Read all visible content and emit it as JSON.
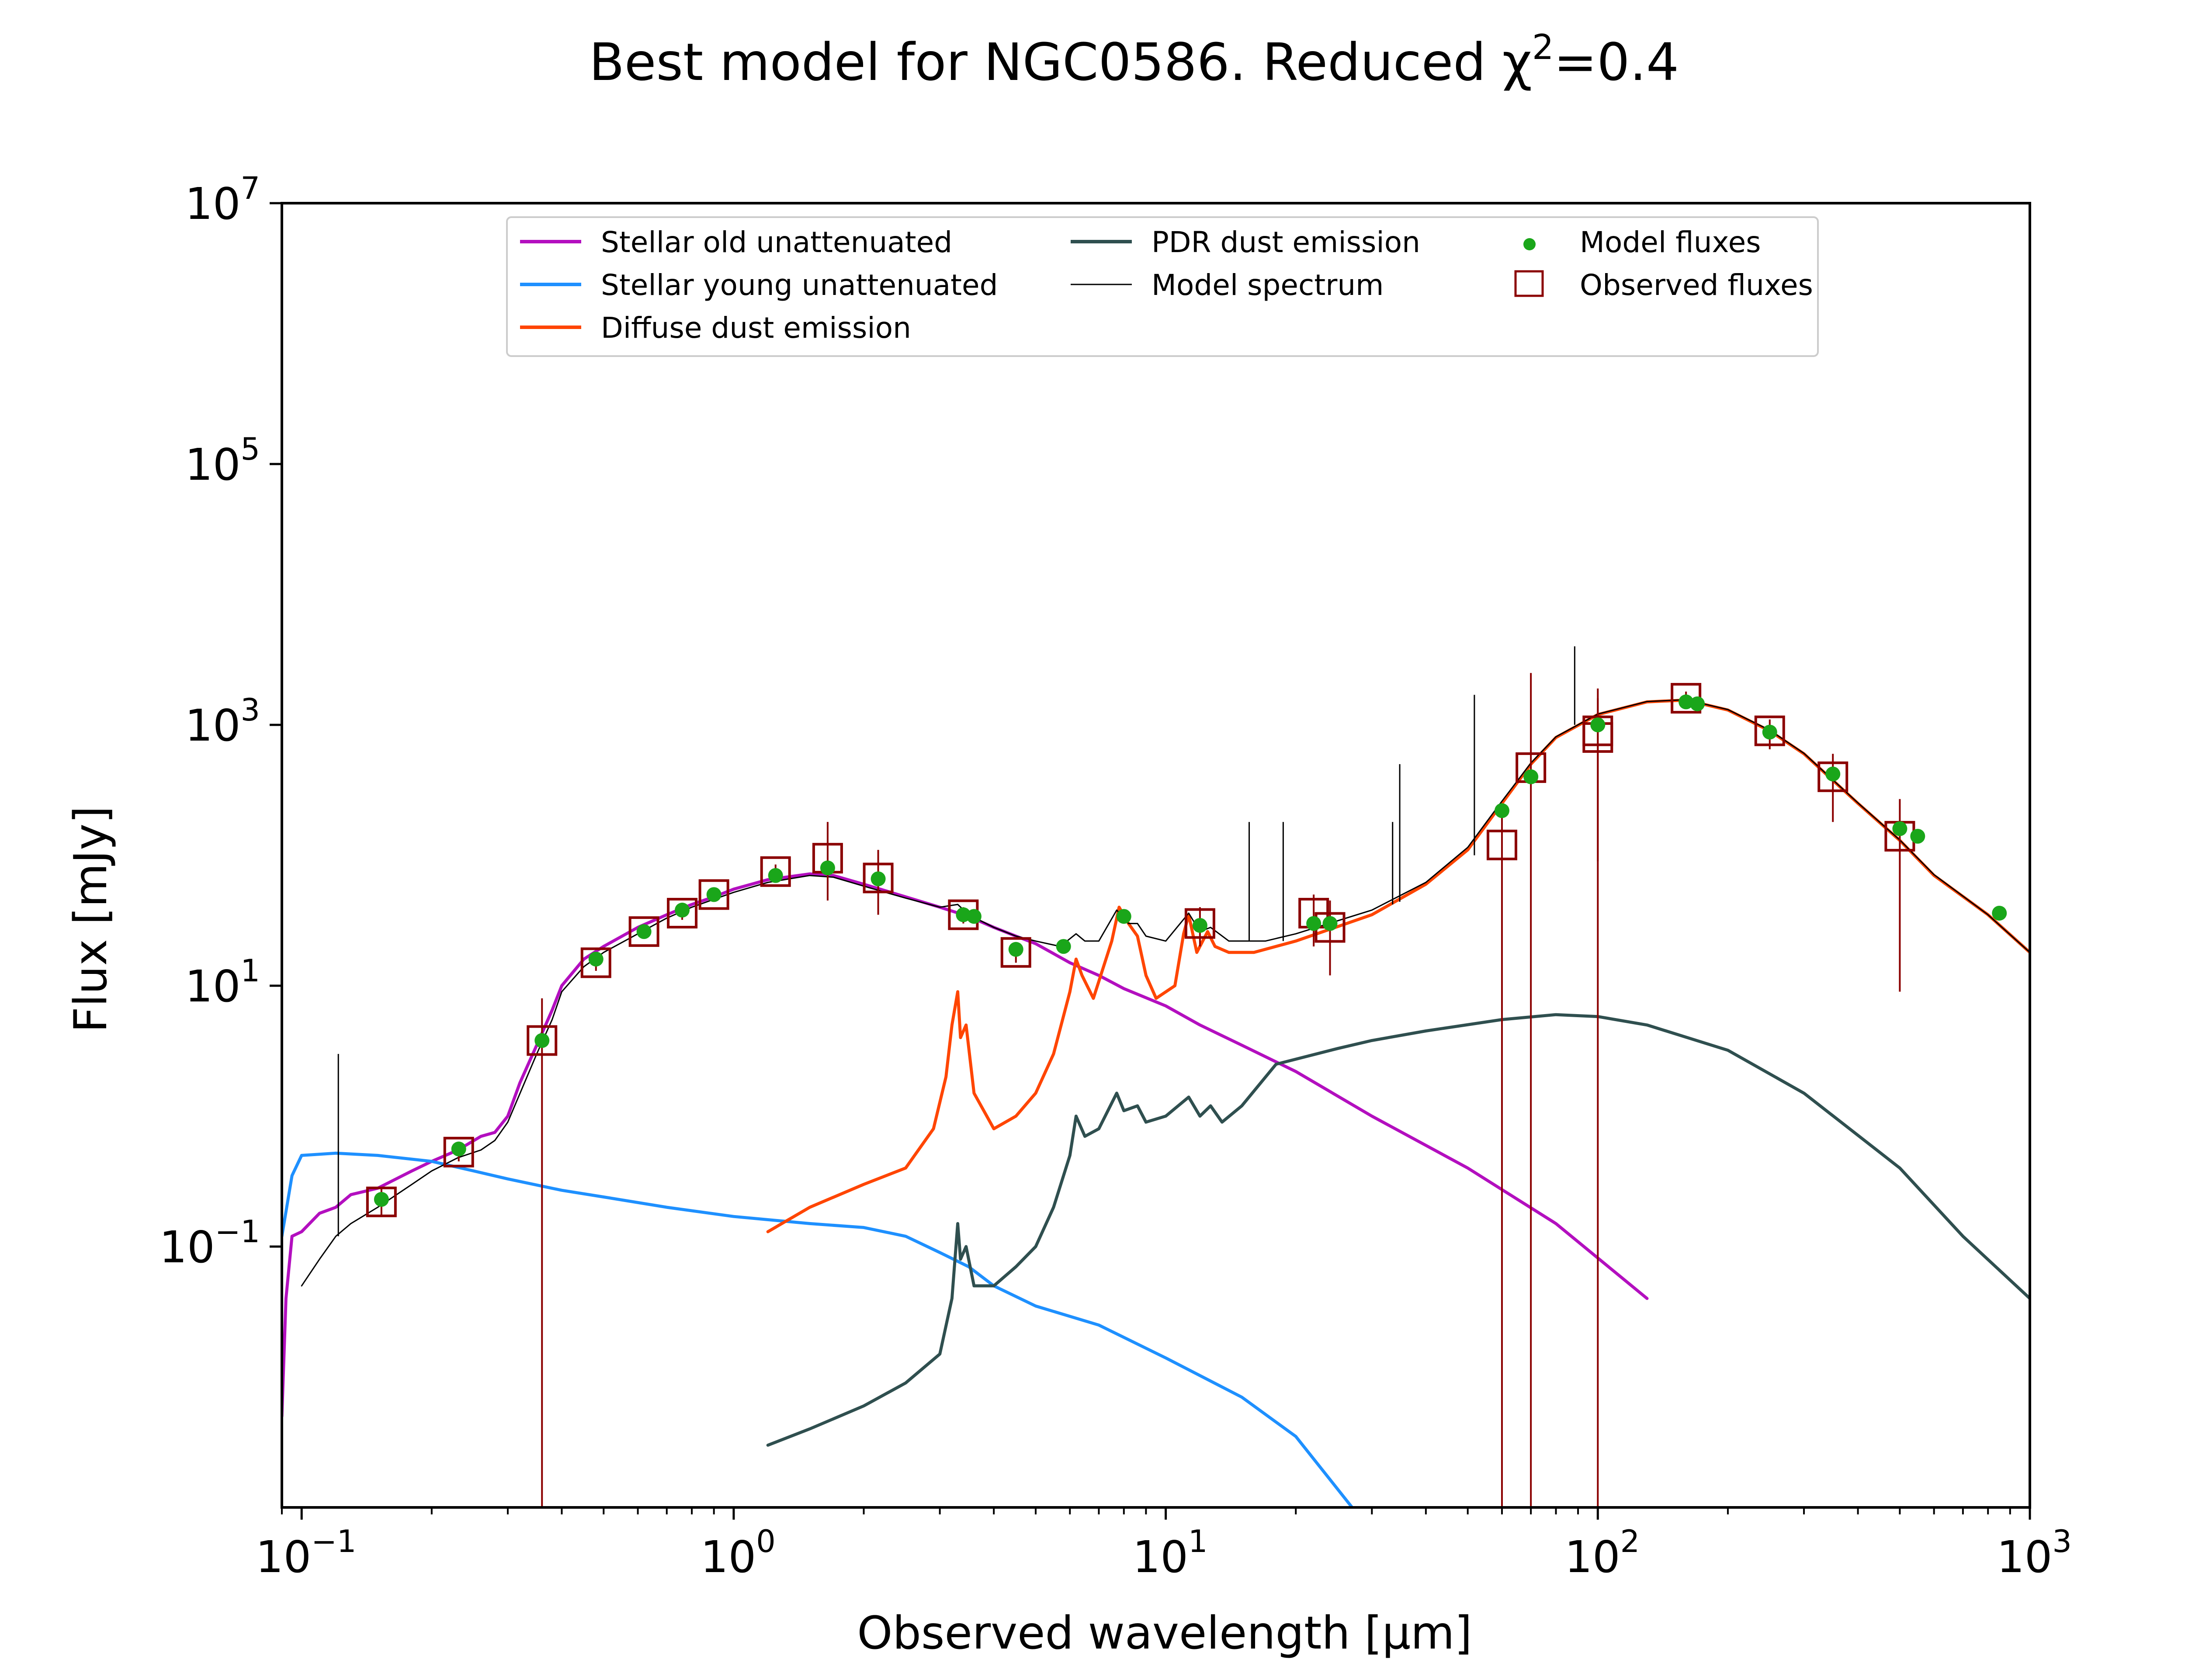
{
  "chart_data": {
    "type": "line",
    "title": "Best model for NGC0586. Reduced χ²=0.4",
    "title_parts": {
      "main": "Best model for NGC0586. Reduced χ",
      "sup": "2",
      "tail": "=0.4"
    },
    "xlabel": "Observed wavelength [μm]",
    "ylabel": "Flux [mJy]",
    "xscale": "log",
    "yscale": "log",
    "xlim": [
      0.09,
      1000
    ],
    "ylim": [
      0.001,
      10000000
    ],
    "grid": false,
    "legend_position": "upper center",
    "x_ticks": [
      {
        "value": 0.1,
        "base": "10",
        "exp": "−1"
      },
      {
        "value": 1,
        "base": "10",
        "exp": "0"
      },
      {
        "value": 10,
        "base": "10",
        "exp": "1"
      },
      {
        "value": 100,
        "base": "10",
        "exp": "2"
      },
      {
        "value": 1000,
        "base": "10",
        "exp": "3"
      }
    ],
    "y_ticks": [
      {
        "value": 0.1,
        "base": "10",
        "exp": "−1"
      },
      {
        "value": 10,
        "base": "10",
        "exp": "1"
      },
      {
        "value": 1000,
        "base": "10",
        "exp": "3"
      },
      {
        "value": 100000,
        "base": "10",
        "exp": "5"
      },
      {
        "value": 10000000,
        "base": "10",
        "exp": "7"
      }
    ],
    "legend": [
      {
        "label": "Stellar old unattenuated",
        "color": "#b30fbf",
        "kind": "line"
      },
      {
        "label": "Stellar young unattenuated",
        "color": "#1e90ff",
        "kind": "line"
      },
      {
        "label": "Diffuse dust emission",
        "color": "#ff4500",
        "kind": "line"
      },
      {
        "label": "PDR dust emission",
        "color": "#2f4f4f",
        "kind": "line"
      },
      {
        "label": "Model spectrum",
        "color": "#000000",
        "kind": "thin-line"
      },
      {
        "label": "Model fluxes",
        "color": "#1aa61a",
        "kind": "dot"
      },
      {
        "label": "Observed fluxes",
        "color": "#8b0000",
        "kind": "square"
      }
    ],
    "series": [
      {
        "key": "stellar_old",
        "color": "#b30fbf",
        "width": 7,
        "points": [
          [
            0.09,
            0.005
          ],
          [
            0.092,
            0.04
          ],
          [
            0.095,
            0.12
          ],
          [
            0.1,
            0.13
          ],
          [
            0.11,
            0.18
          ],
          [
            0.12,
            0.2
          ],
          [
            0.13,
            0.25
          ],
          [
            0.15,
            0.28
          ],
          [
            0.18,
            0.38
          ],
          [
            0.2,
            0.45
          ],
          [
            0.23,
            0.55
          ],
          [
            0.26,
            0.7
          ],
          [
            0.28,
            0.75
          ],
          [
            0.3,
            1.0
          ],
          [
            0.32,
            1.8
          ],
          [
            0.35,
            3.5
          ],
          [
            0.38,
            6.5
          ],
          [
            0.4,
            10
          ],
          [
            0.45,
            16
          ],
          [
            0.5,
            20
          ],
          [
            0.6,
            28
          ],
          [
            0.7,
            35
          ],
          [
            0.8,
            42
          ],
          [
            0.9,
            48
          ],
          [
            1.0,
            55
          ],
          [
            1.2,
            65
          ],
          [
            1.5,
            72
          ],
          [
            1.7,
            70
          ],
          [
            2.0,
            60
          ],
          [
            2.5,
            48
          ],
          [
            3.0,
            40
          ],
          [
            3.5,
            34
          ],
          [
            4.0,
            28
          ],
          [
            4.5,
            24
          ],
          [
            5.0,
            21
          ],
          [
            6.0,
            15
          ],
          [
            7.0,
            12
          ],
          [
            8.0,
            9.5
          ],
          [
            10,
            7
          ],
          [
            12,
            5
          ],
          [
            15,
            3.5
          ],
          [
            20,
            2.2
          ],
          [
            30,
            1.0
          ],
          [
            50,
            0.4
          ],
          [
            80,
            0.15
          ],
          [
            130,
            0.04
          ]
        ]
      },
      {
        "key": "stellar_young",
        "color": "#1e90ff",
        "width": 7,
        "points": [
          [
            0.09,
            0.12
          ],
          [
            0.095,
            0.35
          ],
          [
            0.1,
            0.5
          ],
          [
            0.12,
            0.52
          ],
          [
            0.15,
            0.5
          ],
          [
            0.2,
            0.45
          ],
          [
            0.25,
            0.38
          ],
          [
            0.3,
            0.33
          ],
          [
            0.4,
            0.27
          ],
          [
            0.5,
            0.24
          ],
          [
            0.7,
            0.2
          ],
          [
            1.0,
            0.17
          ],
          [
            1.5,
            0.15
          ],
          [
            2.0,
            0.14
          ],
          [
            2.5,
            0.12
          ],
          [
            3.0,
            0.09
          ],
          [
            3.5,
            0.07
          ],
          [
            4.0,
            0.05
          ],
          [
            5.0,
            0.035
          ],
          [
            7.0,
            0.025
          ],
          [
            10,
            0.014
          ],
          [
            15,
            0.007
          ],
          [
            20,
            0.0035
          ],
          [
            27,
            0.001
          ]
        ]
      },
      {
        "key": "diffuse_dust",
        "color": "#ff4500",
        "width": 7,
        "points": [
          [
            1.2,
            0.13
          ],
          [
            1.5,
            0.2
          ],
          [
            2.0,
            0.3
          ],
          [
            2.5,
            0.4
          ],
          [
            2.9,
            0.8
          ],
          [
            3.1,
            2
          ],
          [
            3.2,
            5
          ],
          [
            3.3,
            9
          ],
          [
            3.35,
            4
          ],
          [
            3.45,
            5
          ],
          [
            3.6,
            1.5
          ],
          [
            4.0,
            0.8
          ],
          [
            4.5,
            1.0
          ],
          [
            5.0,
            1.5
          ],
          [
            5.5,
            3
          ],
          [
            6.0,
            9
          ],
          [
            6.2,
            16
          ],
          [
            6.4,
            12
          ],
          [
            6.8,
            8
          ],
          [
            7.5,
            22
          ],
          [
            7.8,
            40
          ],
          [
            8.2,
            30
          ],
          [
            8.6,
            24
          ],
          [
            9.0,
            12
          ],
          [
            9.5,
            8
          ],
          [
            10.5,
            10
          ],
          [
            11.0,
            25
          ],
          [
            11.3,
            35
          ],
          [
            11.8,
            18
          ],
          [
            12.5,
            26
          ],
          [
            13.0,
            20
          ],
          [
            14,
            18
          ],
          [
            16,
            18
          ],
          [
            20,
            22
          ],
          [
            30,
            35
          ],
          [
            40,
            60
          ],
          [
            50,
            110
          ],
          [
            60,
            250
          ],
          [
            70,
            500
          ],
          [
            80,
            800
          ],
          [
            100,
            1200
          ],
          [
            130,
            1500
          ],
          [
            160,
            1550
          ],
          [
            200,
            1300
          ],
          [
            250,
            900
          ],
          [
            300,
            600
          ],
          [
            400,
            250
          ],
          [
            500,
            130
          ],
          [
            600,
            70
          ],
          [
            800,
            35
          ],
          [
            1000,
            18
          ]
        ]
      },
      {
        "key": "pdr_dust",
        "color": "#2f4f4f",
        "width": 7,
        "points": [
          [
            1.2,
            0.003
          ],
          [
            1.5,
            0.004
          ],
          [
            2.0,
            0.006
          ],
          [
            2.5,
            0.009
          ],
          [
            3.0,
            0.015
          ],
          [
            3.2,
            0.04
          ],
          [
            3.3,
            0.15
          ],
          [
            3.35,
            0.08
          ],
          [
            3.45,
            0.1
          ],
          [
            3.6,
            0.05
          ],
          [
            4.0,
            0.05
          ],
          [
            4.5,
            0.07
          ],
          [
            5.0,
            0.1
          ],
          [
            5.5,
            0.2
          ],
          [
            6.0,
            0.5
          ],
          [
            6.2,
            1.0
          ],
          [
            6.5,
            0.7
          ],
          [
            7.0,
            0.8
          ],
          [
            7.7,
            1.5
          ],
          [
            8.0,
            1.1
          ],
          [
            8.6,
            1.2
          ],
          [
            9.0,
            0.9
          ],
          [
            10,
            1.0
          ],
          [
            11.3,
            1.4
          ],
          [
            12,
            1.0
          ],
          [
            12.7,
            1.2
          ],
          [
            13.5,
            0.9
          ],
          [
            15,
            1.2
          ],
          [
            18,
            2.5
          ],
          [
            25,
            3.3
          ],
          [
            30,
            3.8
          ],
          [
            40,
            4.5
          ],
          [
            60,
            5.5
          ],
          [
            80,
            6.0
          ],
          [
            100,
            5.8
          ],
          [
            130,
            5.0
          ],
          [
            200,
            3.2
          ],
          [
            300,
            1.5
          ],
          [
            500,
            0.4
          ],
          [
            700,
            0.12
          ],
          [
            1000,
            0.04
          ]
        ]
      },
      {
        "key": "model_spectrum",
        "color": "#000000",
        "width": 3,
        "points": [
          [
            0.1,
            0.05
          ],
          [
            0.11,
            0.08
          ],
          [
            0.12,
            0.12
          ],
          [
            0.13,
            0.15
          ],
          [
            0.15,
            0.2
          ],
          [
            0.18,
            0.3
          ],
          [
            0.2,
            0.38
          ],
          [
            0.23,
            0.48
          ],
          [
            0.26,
            0.55
          ],
          [
            0.28,
            0.65
          ],
          [
            0.3,
            0.9
          ],
          [
            0.35,
            3.0
          ],
          [
            0.38,
            5.5
          ],
          [
            0.4,
            9
          ],
          [
            0.45,
            14
          ],
          [
            0.5,
            18
          ],
          [
            0.6,
            25
          ],
          [
            0.7,
            33
          ],
          [
            0.8,
            40
          ],
          [
            0.9,
            46
          ],
          [
            1.0,
            52
          ],
          [
            1.2,
            62
          ],
          [
            1.5,
            70
          ],
          [
            1.7,
            68
          ],
          [
            2.0,
            58
          ],
          [
            2.5,
            47
          ],
          [
            3.0,
            40
          ],
          [
            3.3,
            42
          ],
          [
            3.5,
            35
          ],
          [
            4.0,
            28
          ],
          [
            4.5,
            24
          ],
          [
            5.0,
            22
          ],
          [
            5.7,
            20
          ],
          [
            6.2,
            25
          ],
          [
            6.5,
            22
          ],
          [
            7.0,
            22
          ],
          [
            7.7,
            38
          ],
          [
            8.2,
            30
          ],
          [
            8.6,
            30
          ],
          [
            9.0,
            24
          ],
          [
            10,
            22
          ],
          [
            11.3,
            36
          ],
          [
            12,
            26
          ],
          [
            12.7,
            28
          ],
          [
            14,
            22
          ],
          [
            17,
            22
          ],
          [
            20,
            25
          ],
          [
            30,
            38
          ],
          [
            40,
            62
          ],
          [
            50,
            115
          ],
          [
            60,
            260
          ],
          [
            70,
            510
          ],
          [
            80,
            810
          ],
          [
            100,
            1210
          ],
          [
            130,
            1510
          ],
          [
            160,
            1560
          ],
          [
            200,
            1310
          ],
          [
            250,
            910
          ],
          [
            300,
            605
          ],
          [
            400,
            252
          ],
          [
            500,
            131
          ],
          [
            600,
            71
          ],
          [
            800,
            35
          ],
          [
            1000,
            18
          ]
        ]
      }
    ],
    "emission_lines": [
      {
        "x": 0.1216,
        "base": 0.12,
        "top": 3.0
      },
      {
        "x": 15.6,
        "base": 22,
        "top": 180
      },
      {
        "x": 18.7,
        "base": 22,
        "top": 180
      },
      {
        "x": 33.5,
        "base": 42,
        "top": 180
      },
      {
        "x": 34.8,
        "base": 44,
        "top": 500
      },
      {
        "x": 51.8,
        "base": 100,
        "top": 1700
      },
      {
        "x": 88.4,
        "base": 1000,
        "top": 4000
      }
    ],
    "model_fluxes": [
      [
        0.153,
        0.23
      ],
      [
        0.231,
        0.56
      ],
      [
        0.36,
        3.8
      ],
      [
        0.48,
        16
      ],
      [
        0.62,
        26
      ],
      [
        0.76,
        38
      ],
      [
        0.9,
        50
      ],
      [
        1.25,
        70
      ],
      [
        1.65,
        80
      ],
      [
        2.16,
        66
      ],
      [
        3.4,
        35
      ],
      [
        3.6,
        34
      ],
      [
        4.5,
        19
      ],
      [
        5.8,
        20
      ],
      [
        8.0,
        34
      ],
      [
        12,
        29
      ],
      [
        22,
        30
      ],
      [
        24,
        30
      ],
      [
        60,
        220
      ],
      [
        70,
        400
      ],
      [
        100,
        1000
      ],
      [
        160,
        1500
      ],
      [
        170,
        1450
      ],
      [
        250,
        880
      ],
      [
        350,
        420
      ],
      [
        500,
        160
      ],
      [
        550,
        140
      ],
      [
        850,
        36
      ]
    ],
    "observed_fluxes": [
      {
        "x": 0.153,
        "y": 0.22,
        "err_lo": 0.17,
        "err_hi": 0.28
      },
      {
        "x": 0.231,
        "y": 0.53,
        "err_lo": 0.45,
        "err_hi": 0.62
      },
      {
        "x": 0.36,
        "y": 3.8,
        "err_lo": 0.001,
        "err_hi": 8.0
      },
      {
        "x": 0.48,
        "y": 15,
        "err_lo": 13,
        "err_hi": 17
      },
      {
        "x": 0.62,
        "y": 26,
        "err_lo": 23,
        "err_hi": 29
      },
      {
        "x": 0.76,
        "y": 36,
        "err_lo": 32,
        "err_hi": 40
      },
      {
        "x": 0.9,
        "y": 50,
        "err_lo": 45,
        "err_hi": 55
      },
      {
        "x": 1.25,
        "y": 75,
        "err_lo": 65,
        "err_hi": 85
      },
      {
        "x": 1.65,
        "y": 95,
        "err_lo": 45,
        "err_hi": 180
      },
      {
        "x": 2.16,
        "y": 67,
        "err_lo": 35,
        "err_hi": 110
      },
      {
        "x": 3.4,
        "y": 35,
        "err_lo": 30,
        "err_hi": 40
      },
      {
        "x": 4.5,
        "y": 18,
        "err_lo": 15,
        "err_hi": 21
      },
      {
        "x": 12,
        "y": 30,
        "err_lo": 20,
        "err_hi": 40
      },
      {
        "x": 22,
        "y": 36,
        "err_lo": 20,
        "err_hi": 50
      },
      {
        "x": 24,
        "y": 28,
        "err_lo": 12,
        "err_hi": 45
      },
      {
        "x": 60,
        "y": 120,
        "err_lo": 0.001,
        "err_hi": 250
      },
      {
        "x": 70,
        "y": 470,
        "err_lo": 0.001,
        "err_hi": 2500
      },
      {
        "x": 100,
        "y": 900,
        "err_lo": 0.001,
        "err_hi": 1900
      },
      {
        "x": 100,
        "y": 800,
        "err_lo": 90,
        "err_hi": 1600
      },
      {
        "x": 160,
        "y": 1600,
        "err_lo": 1400,
        "err_hi": 1800
      },
      {
        "x": 250,
        "y": 900,
        "err_lo": 650,
        "err_hi": 1100
      },
      {
        "x": 350,
        "y": 400,
        "err_lo": 180,
        "err_hi": 600
      },
      {
        "x": 500,
        "y": 140,
        "err_lo": 9,
        "err_hi": 270
      }
    ]
  }
}
